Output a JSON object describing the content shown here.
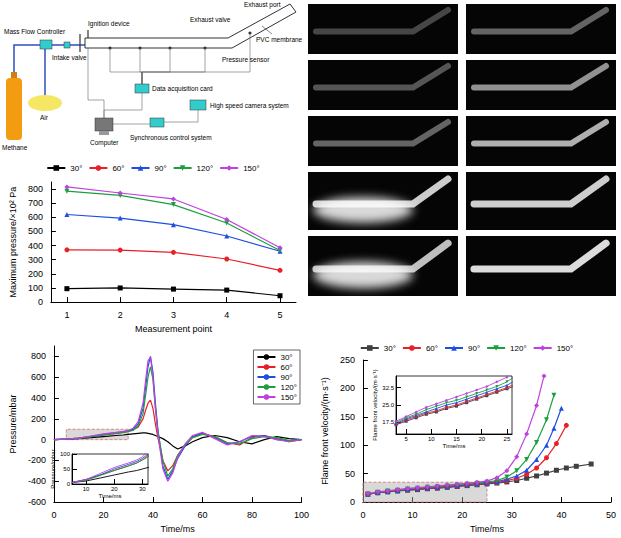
{
  "diagram": {
    "labels": {
      "mass_flow_controller": "Mass Flow Controller",
      "ignition_device": "Ignition device",
      "exhaust_port": "Exhaust port",
      "exhaust_valve": "Exhaust valve",
      "pvc_membrane": "PVC membrane",
      "intake_valve": "Intake valve",
      "pressure_sensor": "Pressure sensor",
      "data_acquisition_card": "Data acquisition card",
      "methane": "Methane",
      "air": "Air",
      "high_speed_camera": "High speed camera system",
      "computer": "Computer",
      "synchronous_control": "Synchronous control system"
    }
  },
  "chart_data": [
    {
      "type": "line",
      "x_label": "Measurement point",
      "y_label": "Maximum pressure/×10² Pa",
      "x": [
        1,
        2,
        3,
        4,
        5
      ],
      "xlim": [
        0.7,
        5.3
      ],
      "xticks": [
        1,
        2,
        3,
        4,
        5
      ],
      "ylim": [
        0,
        850
      ],
      "yticks": [
        0,
        100,
        200,
        300,
        400,
        500,
        600,
        700,
        800
      ],
      "grid": false,
      "legend": "top",
      "series": [
        {
          "name": "30°",
          "color": "#000000",
          "marker": "square",
          "values": [
            95,
            100,
            92,
            85,
            45
          ]
        },
        {
          "name": "60°",
          "color": "#e8202a",
          "marker": "circle",
          "values": [
            370,
            368,
            352,
            305,
            225
          ]
        },
        {
          "name": "90°",
          "color": "#1f4fe0",
          "marker": "triangle",
          "values": [
            620,
            595,
            548,
            468,
            360
          ]
        },
        {
          "name": "120°",
          "color": "#1aa03c",
          "marker": "triangle_down",
          "values": [
            785,
            755,
            690,
            560,
            365
          ]
        },
        {
          "name": "150°",
          "color": "#c040e0",
          "marker": "diamond",
          "values": [
            815,
            772,
            730,
            585,
            385
          ]
        }
      ]
    },
    {
      "type": "line",
      "x_label": "Time/ms",
      "y_label": "Pressure/mbar",
      "x": [
        0,
        5,
        10,
        15,
        20,
        25,
        28,
        30,
        32,
        34,
        36,
        37,
        38,
        39,
        40,
        41,
        42,
        44,
        46,
        48,
        50,
        53,
        56,
        60,
        65,
        70,
        75,
        80,
        85,
        90,
        95,
        100
      ],
      "xlim": [
        0,
        100
      ],
      "xticks": [
        0,
        20,
        40,
        60,
        80,
        100
      ],
      "ylim": [
        -600,
        900
      ],
      "yticks": [
        -600,
        -400,
        -200,
        0,
        200,
        400,
        600,
        800
      ],
      "grid": false,
      "legend": "upper right",
      "marker": "none",
      "line_style": "solid",
      "zoom_box": {
        "x": [
          5,
          30
        ],
        "y": [
          0,
          100
        ]
      },
      "inset": {
        "x_label": "Time/ms",
        "y_label": "Pressure/mbar",
        "xlim": [
          5,
          32
        ],
        "xticks": [
          10,
          20,
          30
        ],
        "ylim": [
          0,
          100
        ],
        "yticks": [
          0,
          50,
          100
        ]
      },
      "series": [
        {
          "name": "30°",
          "color": "#000000",
          "values": [
            0,
            5,
            10,
            20,
            30,
            40,
            45,
            50,
            55,
            60,
            65,
            65,
            60,
            55,
            50,
            40,
            30,
            10,
            -20,
            -60,
            -90,
            -60,
            -20,
            20,
            40,
            20,
            -20,
            -40,
            0,
            30,
            10,
            0
          ]
        },
        {
          "name": "60°",
          "color": "#e8202a",
          "values": [
            0,
            5,
            15,
            30,
            45,
            60,
            70,
            80,
            95,
            120,
            200,
            280,
            350,
            380,
            300,
            150,
            20,
            -200,
            -300,
            -250,
            -150,
            -50,
            20,
            60,
            30,
            -30,
            -50,
            20,
            40,
            10,
            -20,
            0
          ]
        },
        {
          "name": "90°",
          "color": "#1f4fe0",
          "values": [
            0,
            5,
            15,
            30,
            50,
            65,
            75,
            85,
            100,
            150,
            300,
            500,
            700,
            800,
            650,
            350,
            100,
            -250,
            -380,
            -300,
            -180,
            -60,
            30,
            60,
            20,
            -40,
            -20,
            30,
            40,
            0,
            -10,
            0
          ]
        },
        {
          "name": "120°",
          "color": "#1aa03c",
          "values": [
            0,
            5,
            12,
            28,
            45,
            60,
            70,
            80,
            90,
            130,
            250,
            420,
            600,
            700,
            580,
            300,
            80,
            -200,
            -350,
            -280,
            -150,
            -50,
            20,
            50,
            30,
            -30,
            -40,
            10,
            30,
            20,
            -10,
            0
          ]
        },
        {
          "name": "150°",
          "color": "#c040e0",
          "values": [
            0,
            5,
            15,
            35,
            55,
            70,
            80,
            90,
            110,
            170,
            350,
            560,
            760,
            790,
            600,
            300,
            50,
            -280,
            -400,
            -320,
            -170,
            -40,
            40,
            70,
            10,
            -50,
            -20,
            40,
            30,
            0,
            -20,
            0
          ]
        }
      ]
    },
    {
      "type": "line",
      "x_label": "Time/ms",
      "y_label": "Flame front velocity/(m·s⁻¹)",
      "xlim": [
        0,
        50
      ],
      "xticks": [
        0,
        10,
        20,
        30,
        40,
        50
      ],
      "ylim": [
        0,
        250
      ],
      "yticks": [
        0,
        50,
        100,
        150,
        200,
        250
      ],
      "grid": false,
      "legend": "top",
      "zoom_box": {
        "x": [
          0,
          25
        ],
        "y": [
          0,
          35
        ]
      },
      "inset": {
        "x_label": "Time/ms",
        "y_label": "Flame front velocity/(m·s⁻¹)",
        "xlim": [
          3,
          26
        ],
        "xticks": [
          5,
          10,
          15,
          20,
          25
        ],
        "ylim": [
          12.5,
          37.5
        ],
        "yticks": [
          17.5,
          {
            "value": 25,
            "label": "25.0"
          },
          32.5
        ]
      },
      "series": [
        {
          "name": "30°",
          "color": "#404040",
          "marker": "square",
          "x": [
            1,
            3,
            5,
            7,
            9,
            11,
            13,
            15,
            17,
            19,
            21,
            23,
            25,
            27,
            29,
            31,
            33,
            35,
            37,
            39,
            41,
            43,
            46
          ],
          "values": [
            14,
            16.5,
            18,
            19.5,
            21,
            22,
            23.5,
            24.5,
            26,
            27.5,
            29,
            30.5,
            32,
            33.5,
            35.5,
            38,
            42,
            46,
            51,
            56,
            60,
            63,
            67
          ]
        },
        {
          "name": "60°",
          "color": "#e8202a",
          "marker": "circle",
          "x": [
            1,
            3,
            5,
            7,
            9,
            11,
            13,
            15,
            17,
            19,
            21,
            23,
            25,
            27,
            29,
            31,
            33,
            35,
            37,
            39,
            41
          ],
          "values": [
            14,
            16.5,
            18.5,
            20,
            21.5,
            22.5,
            24,
            25,
            26.5,
            28,
            29.5,
            31,
            32.5,
            34.5,
            37.5,
            42,
            49,
            60,
            78,
            103,
            135
          ]
        },
        {
          "name": "90°",
          "color": "#1f4fe0",
          "marker": "triangle",
          "x": [
            1,
            3,
            5,
            7,
            9,
            11,
            13,
            15,
            17,
            19,
            21,
            23,
            25,
            27,
            29,
            31,
            33,
            35,
            37,
            38.5,
            40
          ],
          "values": [
            14,
            17,
            19,
            20.5,
            22,
            23.5,
            25,
            26,
            27.5,
            29,
            30.5,
            32,
            33.5,
            36,
            40,
            46,
            56,
            75,
            100,
            130,
            165
          ]
        },
        {
          "name": "120°",
          "color": "#1aa03c",
          "marker": "triangle_down",
          "x": [
            1,
            3,
            5,
            7,
            9,
            11,
            13,
            15,
            17,
            19,
            21,
            23,
            25,
            27,
            29,
            31,
            33,
            35,
            37,
            38.5
          ],
          "values": [
            14,
            17.5,
            19.5,
            21,
            23,
            24.5,
            26,
            27,
            28.5,
            30,
            31.5,
            33,
            35,
            38,
            44,
            55,
            75,
            105,
            145,
            188
          ]
        },
        {
          "name": "150°",
          "color": "#c040e0",
          "marker": "diamond",
          "x": [
            1,
            3,
            5,
            7,
            9,
            11,
            13,
            15,
            17,
            19,
            21,
            23,
            25,
            27,
            29,
            31,
            33,
            35,
            36.5
          ],
          "values": [
            15,
            18,
            20,
            22,
            24,
            25.5,
            27,
            28.5,
            30,
            31.5,
            33,
            35,
            37,
            43,
            55,
            80,
            120,
            170,
            222
          ]
        }
      ]
    }
  ]
}
